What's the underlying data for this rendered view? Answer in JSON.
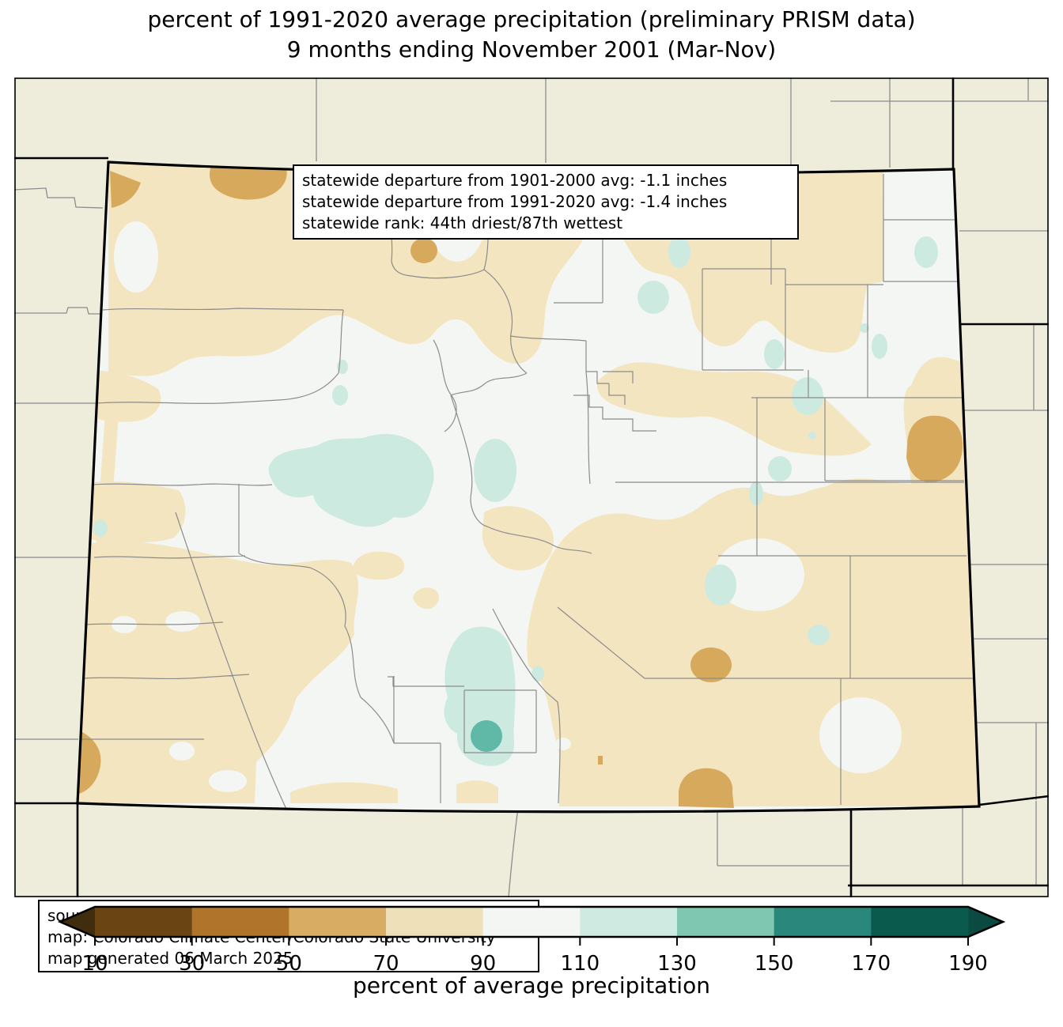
{
  "title": {
    "line1": "percent of 1991-2020 average precipitation (preliminary PRISM data)",
    "line2": "9 months ending November 2001 (Mar-Nov)"
  },
  "stats_box": {
    "lines": [
      "statewide departure from 1901-2000 avg: -1.1 inches",
      "statewide departure from 1991-2020 avg: -1.4 inches",
      "statewide rank: 44th driest/87th wettest"
    ]
  },
  "source_box": {
    "lines": [
      "source: PRISM Climate Group, Oregon State University",
      "map: Colorado Climate Center/Colorado State University",
      "map generated 06 March 2025"
    ]
  },
  "legend": {
    "label": "percent of average precipitation",
    "ticks": [
      "10",
      "30",
      "50",
      "70",
      "90",
      "110",
      "130",
      "150",
      "170",
      "190"
    ],
    "segment_colors": [
      "#6b4413",
      "#b0742a",
      "#d8ad63",
      "#eee1b9",
      "#f3f6f2",
      "#cfeae1",
      "#7fc7b1",
      "#2a877b",
      "#0b5a4e"
    ],
    "under_range_color": "#402c0e",
    "over_range_color": "#0a4a41",
    "outline_color": "#000000"
  },
  "map": {
    "colors": {
      "outside_background": "#eeeddb",
      "outside_county_line": "#8c8c8c",
      "state_border": "#000000",
      "normal_90_110": "#f4f6f3",
      "dry_70_90": "#f4e5c1",
      "dry_50_70": "#d6a95c",
      "wet_110_130": "#cdeae1",
      "wet_130_150": "#5fb9a6"
    }
  }
}
